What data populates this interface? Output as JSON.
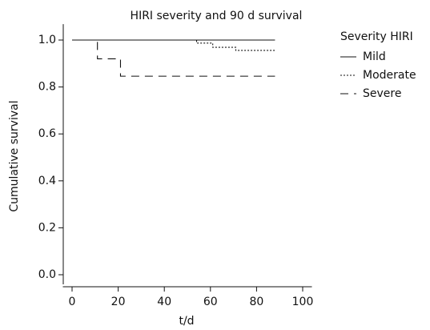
{
  "chart_data": {
    "type": "step",
    "title": "HIRI severity and 90 d survival",
    "x_label": "t/d",
    "y_label": "Cumulative survival",
    "legend_title": "Severity HIRI",
    "legend": "right",
    "xlim": [
      -4,
      104
    ],
    "ylim": [
      -0.041,
      1.068
    ],
    "xticks": [
      0,
      20,
      40,
      60,
      80,
      100
    ],
    "yticks": [
      {
        "value": 0,
        "label": "0.0"
      },
      0.2,
      0.4,
      0.6,
      0.8,
      {
        "value": 1,
        "label": "1.0"
      }
    ],
    "series": [
      {
        "name": "Mild",
        "color": "#111111",
        "dash": "solid",
        "x": [
          0,
          88
        ],
        "values": [
          1.0,
          1.0
        ]
      },
      {
        "name": "Moderate",
        "color": "#111111",
        "dash": "dotted",
        "x": [
          0,
          54,
          61,
          71,
          88
        ],
        "values": [
          1.0,
          0.987,
          0.969,
          0.956,
          0.956
        ]
      },
      {
        "name": "Severe",
        "color": "#111111",
        "dash": "dashed",
        "x": [
          0,
          11,
          21,
          88
        ],
        "values": [
          1.0,
          0.92,
          0.846,
          0.846
        ]
      }
    ]
  }
}
